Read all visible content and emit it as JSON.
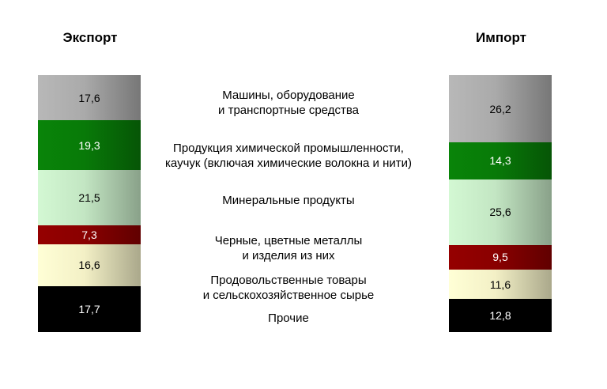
{
  "chart_data": {
    "type": "bar",
    "stacked": true,
    "normalized_percent": true,
    "columns": [
      {
        "title": "Экспорт"
      },
      {
        "title": "Импорт"
      }
    ],
    "categories": [
      {
        "name": "Машины, оборудование\nи транспортные средства",
        "export": 17.6,
        "import": 26.2,
        "export_label": "17,6",
        "import_label": "26,2",
        "color": "#aaaaaa",
        "text_color": "#000000"
      },
      {
        "name": "Продукция химической промышленности,\nкаучук (включая химические волокна и нити)",
        "export": 19.3,
        "import": 14.3,
        "export_label": "19,3",
        "import_label": "14,3",
        "color": "#087a08",
        "text_color": "#ffffff"
      },
      {
        "name": "Минеральные продукты",
        "export": 21.5,
        "import": 25.6,
        "export_label": "21,5",
        "import_label": "25,6",
        "color": "#c3e6c3",
        "text_color": "#000000"
      },
      {
        "name": "Черные, цветные металлы\nи изделия из них",
        "export": 7.3,
        "import": 9.5,
        "export_label": "7,3",
        "import_label": "9,5",
        "color": "#8a0000",
        "text_color": "#ffffff"
      },
      {
        "name": "Продовольственные товары\nи сельскохозяйственное сырье",
        "export": 16.6,
        "import": 11.6,
        "export_label": "16,6",
        "import_label": "11,6",
        "color": "#f3f0c6",
        "text_color": "#000000"
      },
      {
        "name": "Прочие",
        "export": 17.7,
        "import": 12.8,
        "export_label": "17,7",
        "import_label": "12,8",
        "color": "#000000",
        "text_color": "#ffffff"
      }
    ]
  }
}
